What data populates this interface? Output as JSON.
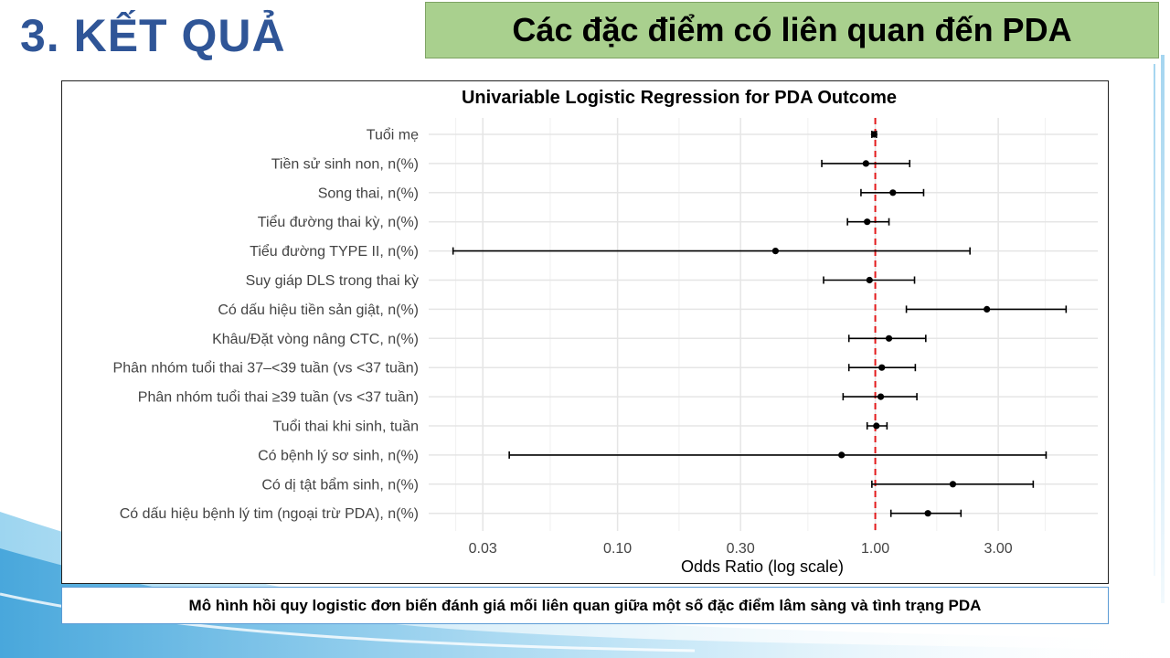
{
  "slide": {
    "section_title": "3. KẾT QUẢ",
    "header": "Các đặc điểm có liên quan đến PDA",
    "caption": "Mô hình hồi quy logistic đơn biến đánh giá mối liên quan giữa một số đặc điểm lâm sàng và tình trạng PDA"
  },
  "colors": {
    "title_blue": "#2f5597",
    "header_green": "#a9d08e",
    "reference_line": "#e31a1c",
    "point": "#000000",
    "grid": "#e5e5e5"
  },
  "chart_data": {
    "type": "forest",
    "title": "Univariable Logistic Regression for PDA Outcome",
    "xlabel": "Odds Ratio (log scale)",
    "x_scale": "log",
    "xlim": [
      0.0185,
      7.3
    ],
    "x_ticks": [
      0.03,
      0.1,
      0.3,
      1.0,
      3.0
    ],
    "x_tick_labels": [
      "0.03",
      "0.10",
      "0.30",
      "1.00",
      "3.00"
    ],
    "reference_line": 1.0,
    "grid": true,
    "rows": [
      {
        "label": "Tuổi mẹ",
        "or": 0.99,
        "lo": 0.97,
        "hi": 1.01
      },
      {
        "label": "Tiền sử sinh non, n(%)",
        "or": 0.92,
        "lo": 0.62,
        "hi": 1.36
      },
      {
        "label": "Song thai, n(%)",
        "or": 1.17,
        "lo": 0.88,
        "hi": 1.54
      },
      {
        "label": "Tiểu đường thai kỳ, n(%)",
        "or": 0.93,
        "lo": 0.78,
        "hi": 1.13
      },
      {
        "label": "Tiểu đường TYPE II, n(%)",
        "or": 0.41,
        "lo": 0.023,
        "hi": 2.33
      },
      {
        "label": "Suy giáp DLS trong thai kỳ",
        "or": 0.95,
        "lo": 0.63,
        "hi": 1.42
      },
      {
        "label": "Có dấu hiệu tiền sản giật, n(%)",
        "or": 2.71,
        "lo": 1.32,
        "hi": 5.5
      },
      {
        "label": "Khâu/Đặt vòng nâng CTC, n(%)",
        "or": 1.13,
        "lo": 0.79,
        "hi": 1.57
      },
      {
        "label": "Phân nhóm tuổi thai 37–<39 tuần (vs <37 tuần)",
        "or": 1.06,
        "lo": 0.79,
        "hi": 1.43
      },
      {
        "label": "Phân nhóm tuổi thai ≥39 tuần (vs <37 tuần)",
        "or": 1.05,
        "lo": 0.75,
        "hi": 1.45
      },
      {
        "label": "Tuổi thai khi sinh, tuần",
        "or": 1.01,
        "lo": 0.93,
        "hi": 1.11
      },
      {
        "label": "Có bệnh lý sơ sinh, n(%)",
        "or": 0.74,
        "lo": 0.038,
        "hi": 4.6
      },
      {
        "label": "Có dị tật bẩm sinh, n(%)",
        "or": 2.0,
        "lo": 0.97,
        "hi": 4.1
      },
      {
        "label": "Có dấu hiệu bệnh lý tim (ngoại trừ PDA), n(%)",
        "or": 1.6,
        "lo": 1.15,
        "hi": 2.15
      }
    ]
  }
}
